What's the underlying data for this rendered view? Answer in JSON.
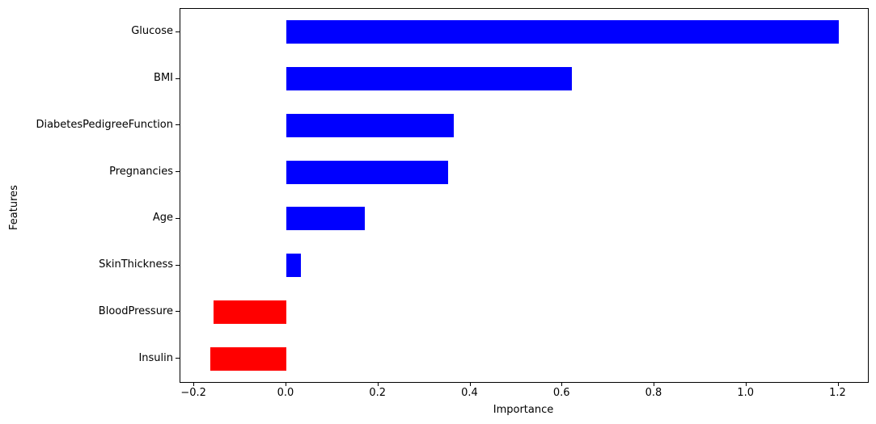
{
  "chart_data": {
    "type": "bar",
    "orientation": "horizontal",
    "title": "",
    "xlabel": "Importance",
    "ylabel": "Features",
    "categories": [
      "Glucose",
      "BMI",
      "DiabetesPedigreeFunction",
      "Pregnancies",
      "Age",
      "SkinThickness",
      "BloodPressure",
      "Insulin"
    ],
    "values": [
      1.2,
      0.62,
      0.364,
      0.352,
      0.171,
      0.031,
      -0.159,
      -0.166
    ],
    "bar_colors": [
      "#0000ff",
      "#0000ff",
      "#0000ff",
      "#0000ff",
      "#0000ff",
      "#0000ff",
      "#ff0000",
      "#ff0000"
    ],
    "positive_color": "#0000ff",
    "negative_color": "#ff0000",
    "xlim": [
      -0.2303,
      1.2642
    ],
    "x_ticks": [
      {
        "label": "−0.2",
        "value": -0.2
      },
      {
        "label": "0.0",
        "value": 0.0
      },
      {
        "label": "0.2",
        "value": 0.2
      },
      {
        "label": "0.4",
        "value": 0.4
      },
      {
        "label": "0.6",
        "value": 0.6
      },
      {
        "label": "0.8",
        "value": 0.8
      },
      {
        "label": "1.0",
        "value": 1.0
      },
      {
        "label": "1.2",
        "value": 1.2
      }
    ],
    "grid": false,
    "legend": null,
    "spine_color": "#000000",
    "background_color": "#ffffff"
  }
}
